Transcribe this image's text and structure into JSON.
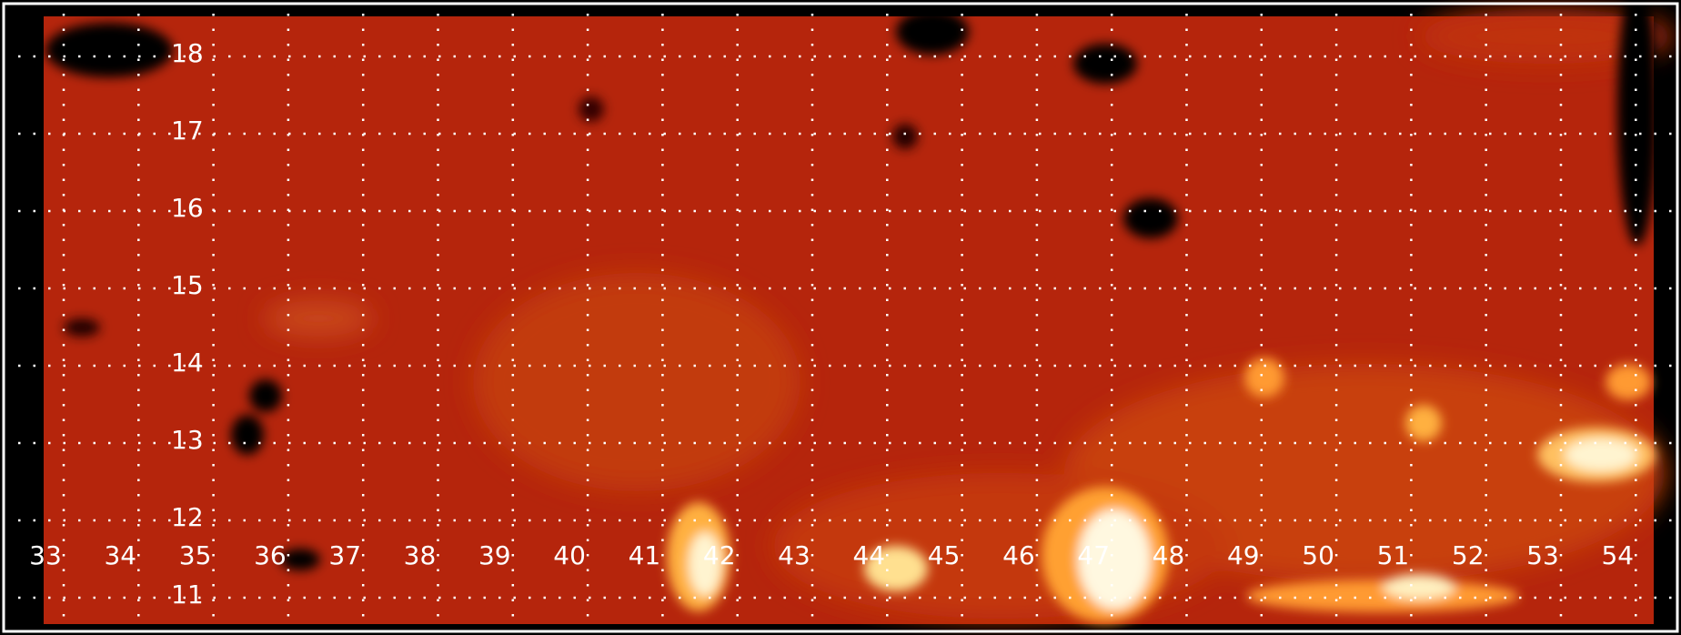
{
  "map": {
    "x_labels": [
      33,
      34,
      35,
      36,
      37,
      38,
      39,
      40,
      41,
      42,
      43,
      44,
      45,
      46,
      47,
      48,
      49,
      50,
      51,
      52,
      53,
      54
    ],
    "y_labels": [
      18,
      17,
      16,
      15,
      14,
      13,
      12,
      11
    ]
  }
}
